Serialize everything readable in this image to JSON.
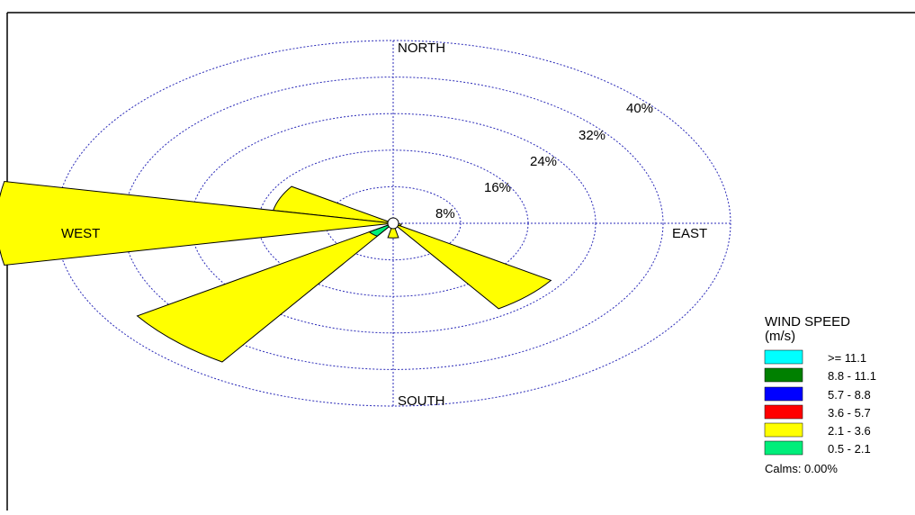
{
  "chart_data": {
    "type": "wind_rose",
    "directions": {
      "north": "NORTH",
      "south": "SOUTH",
      "east": "EAST",
      "west": "WEST"
    },
    "rings": [
      {
        "value": 8,
        "label": "8%"
      },
      {
        "value": 16,
        "label": "16%"
      },
      {
        "value": 24,
        "label": "24%"
      },
      {
        "value": 32,
        "label": "32%"
      },
      {
        "value": 40,
        "label": "40%"
      }
    ],
    "petals": [
      {
        "direction_deg": 292.5,
        "value": 14.5,
        "color": "#FFFF00"
      },
      {
        "direction_deg": 270,
        "value": 47,
        "color": "#FFFF00"
      },
      {
        "direction_deg": 225,
        "value": 36.5,
        "color": "#FFFF00"
      },
      {
        "direction_deg": 180,
        "value": 3.2,
        "color": "#FFFF00"
      },
      {
        "direction_deg": 135,
        "value": 22.5,
        "color": "#FFFF00"
      },
      {
        "direction_deg": 112.5,
        "value": 1.0,
        "color": "#FFFF00"
      }
    ],
    "inner_band": {
      "label": "0.5 - 2.1",
      "color": "#00EE7A",
      "segments": [
        {
          "direction_deg": 225,
          "value": 3.4
        }
      ]
    },
    "legend": {
      "title_line1": "WIND SPEED",
      "title_line2": "(m/s)",
      "items": [
        {
          "label": ">= 11.1",
          "color": "#00FFFF"
        },
        {
          "label": "8.8 - 11.1",
          "color": "#008000"
        },
        {
          "label": "5.7 -  8.8",
          "color": "#0000FF"
        },
        {
          "label": "3.6 -  5.7",
          "color": "#FF0000"
        },
        {
          "label": "2.1 -  3.6",
          "color": "#FFFF00"
        },
        {
          "label": "0.5 -  2.1",
          "color": "#00EE7A"
        }
      ],
      "calms": "Calms: 0.00%"
    },
    "rmax": 40
  }
}
